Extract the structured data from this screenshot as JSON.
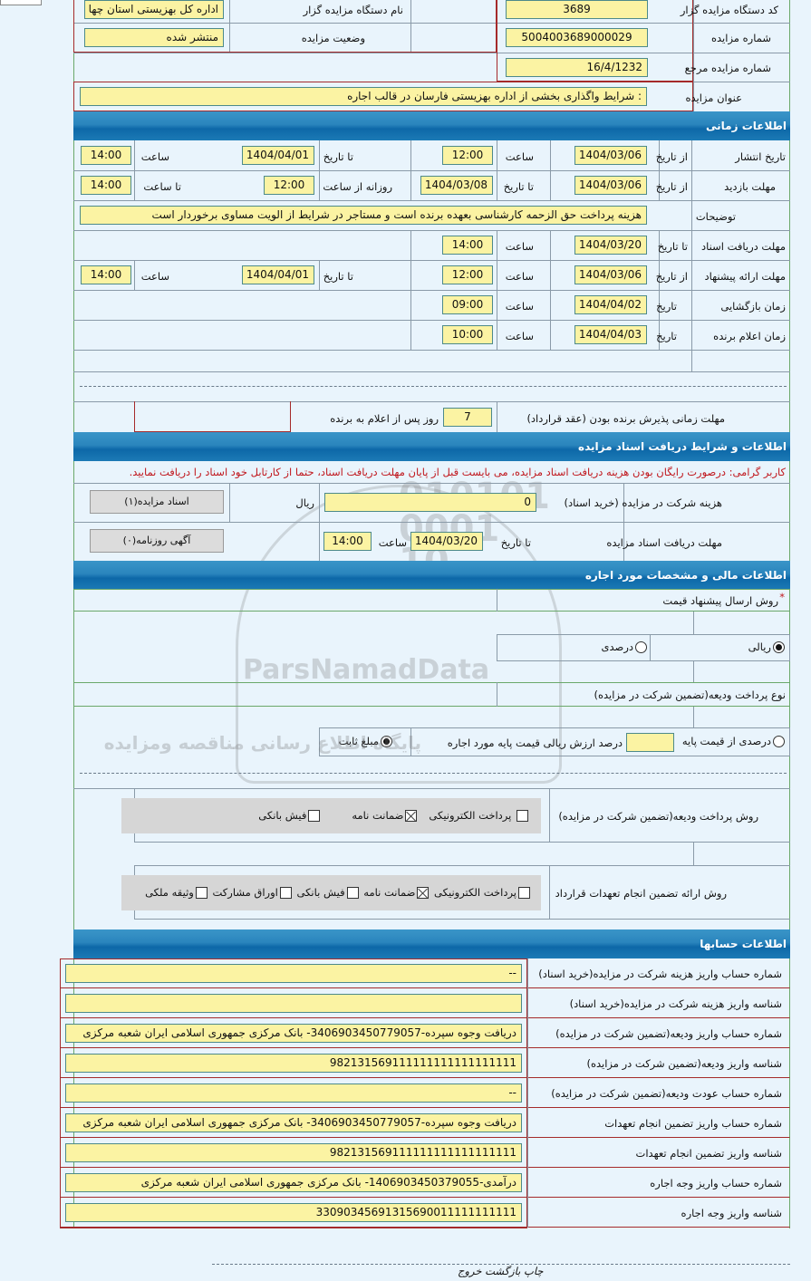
{
  "header": {
    "org_code_label": "کد دستگاه مزایده گزار",
    "org_code": "3689",
    "org_name_label": "نام دستگاه مزایده گزار",
    "org_name": "اداره کل بهزیستی استان چها",
    "auction_no_label": "شماره مزایده",
    "auction_no": "5004003689000029",
    "status_label": "وضعیت مزایده",
    "status": "منتشر شده",
    "ref_no_label": "شماره مزایده مرجع",
    "ref_no": "16/4/1232",
    "title_label": "عنوان مزایده",
    "title": ": شرایط واگذاری بخشی از اداره بهزیستی فارسان در قالب اجاره"
  },
  "timing": {
    "section_title": "اطلاعات زمانی",
    "from_date": "از تاریخ",
    "to_date": "تا تاریخ",
    "hour": "ساعت",
    "to_hour": "تا ساعت",
    "date": "تاریخ",
    "daily_from_hour": "روزانه از ساعت",
    "publish_label": "تاریخ انتشار",
    "publish_from": "1404/03/06",
    "publish_from_time": "12:00",
    "publish_to": "1404/04/01",
    "publish_to_time": "14:00",
    "visit_label": "مهلت بازدید",
    "visit_from": "1404/03/06",
    "visit_to": "1404/03/08",
    "visit_daily_from": "12:00",
    "visit_to_time": "14:00",
    "notes_label": "توضیحات",
    "notes": "هزینه پرداخت حق الزحمه کارشناسی بعهده برنده است و مستاجر در شرایط از الویت مساوی برخوردار است",
    "doc_deadline_label": "مهلت دریافت اسناد",
    "doc_deadline_date": "1404/03/20",
    "doc_deadline_time": "14:00",
    "offer_label": "مهلت ارائه پیشنهاد",
    "offer_from": "1404/03/06",
    "offer_from_time": "12:00",
    "offer_to": "1404/04/01",
    "offer_to_time": "14:00",
    "opening_label": "زمان بازگشایی",
    "opening_date": "1404/04/02",
    "opening_time": "09:00",
    "winner_label": "زمان اعلام برنده",
    "winner_date": "1404/04/03",
    "winner_time": "10:00",
    "acceptance_label": "مهلت زمانی پذیرش برنده بودن (عقد قرارداد)",
    "acceptance_days": "7",
    "acceptance_suffix": "روز پس از اعلام به برنده"
  },
  "documents": {
    "section_title": "اطلاعات و شرایط دریافت اسناد مزایده",
    "notice": "کاربر گرامی: درصورت رایگان بودن هزینه دریافت اسناد مزایده، می بایست قبل از پایان مهلت دریافت اسناد، حتما از کارتابل خود اسناد را دریافت نمایید.",
    "fee_label": "هزینه شرکت در مزایده (خرید اسناد)",
    "fee": "0",
    "currency": "ریال",
    "docs_button": "اسناد مزایده(۱)",
    "deadline_label": "مهلت دریافت اسناد مزایده",
    "to_date": "تا تاریخ",
    "date": "1404/03/20",
    "hour": "ساعت",
    "time": "14:00",
    "newspaper_button": "آگهی روزنامه(۰)"
  },
  "financial": {
    "section_title": "اطلاعات مالی و مشخصات مورد اجاره",
    "price_method_label": "روش ارسال پیشنهاد قیمت",
    "required_mark": "*",
    "price_options": [
      {
        "label": "ریالی",
        "selected": true
      },
      {
        "label": "درصدی",
        "selected": false
      }
    ],
    "deposit_type_label": "نوع پرداخت ودیعه(تضمین شرکت در مزایده)",
    "percent_option": "درصدی از قیمت پایه",
    "percent_suffix": "درصد ارزش ریالی قیمت پایه مورد اجاره",
    "percent_value": "",
    "fixed_option": "مبلغ ثابت",
    "fixed_selected": true,
    "deposit_method_label": "روش پرداخت ودیعه(تضمین شرکت در مزایده)",
    "deposit_methods": [
      {
        "label": "پرداخت الکترونیکی",
        "checked": false
      },
      {
        "label": "ضمانت نامه",
        "checked": true
      },
      {
        "label": "فیش بانکی",
        "checked": false
      }
    ],
    "guarantee_label": "روش ارائه تضمین انجام تعهدات قرارداد",
    "guarantee_methods": [
      {
        "label": "پرداخت الکترونیکی",
        "checked": false
      },
      {
        "label": "ضمانت نامه",
        "checked": true
      },
      {
        "label": "فیش بانکی",
        "checked": false
      },
      {
        "label": "اوراق مشارکت",
        "checked": false
      },
      {
        "label": "وثیقه ملکی",
        "checked": false
      }
    ]
  },
  "accounts": {
    "section_title": "اطلاعات حسابها",
    "rows": [
      {
        "label": "شماره حساب واریز هزینه شرکت در مزایده(خرید اسناد)",
        "value": "--"
      },
      {
        "label": "شناسه واریز هزینه شرکت در مزایده(خرید اسناد)",
        "value": ""
      },
      {
        "label": "شماره حساب واریز ودیعه(تضمین شرکت در مزایده)",
        "value": "دریافت وجوه سپرده-406903450779057‏3- بانک مرکزی جمهوری اسلامی ایران شعبه مرکزی"
      },
      {
        "label": "شناسه واریز ودیعه(تضمین شرکت در مزایده)",
        "value": "982131569111111111111111111"
      },
      {
        "label": "شماره حساب عودت ودیعه(تضمین شرکت در مزایده)",
        "value": "--"
      },
      {
        "label": "شماره حساب واریز تضمین انجام تعهدات",
        "value": "دریافت وجوه سپرده-406903450779057‏3- بانک مرکزی جمهوری اسلامی ایران شعبه مرکزی"
      },
      {
        "label": "شناسه واریز تضمین انجام تعهدات",
        "value": "982131569111111111111111111"
      },
      {
        "label": "شماره حساب واریز وجه اجاره",
        "value": "درآمدی-406903450379055‏1- بانک مرکزی جمهوری اسلامی ایران شعبه مرکزی"
      },
      {
        "label": "شناسه واریز وجه اجاره",
        "value": "3090345691315690011111111111‏3"
      }
    ]
  },
  "footer": {
    "print": "چاپ",
    "back": "بازگشت",
    "exit": "خروج"
  },
  "watermark": {
    "brand": "ParsNamadData",
    "line1": "مرکز فرآوری اطلاعات پارس نماد داده ها",
    "line2": "پایگاه اطلاع رسانی مناقصه ومزایده",
    "phone": "۰۲۱-۸۸۳۴۹۶۷۰-۵"
  }
}
